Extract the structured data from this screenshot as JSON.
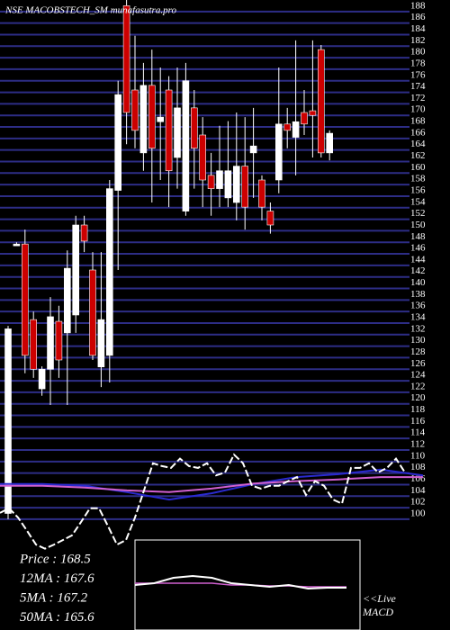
{
  "chart_data": {
    "type": "candlestick",
    "title": "NSE MACOBSTECH_SM munafasutra.pro",
    "ylim": [
      80.8,
      190
    ],
    "yticks": [
      100,
      102,
      104,
      106,
      108,
      110,
      112,
      114,
      116,
      118,
      120,
      122,
      124,
      126,
      128,
      130,
      132,
      134,
      136,
      138,
      140,
      142,
      144,
      146,
      148,
      150,
      152,
      154,
      156,
      158,
      160,
      162,
      164,
      166,
      168,
      170,
      172,
      174,
      176,
      178,
      180,
      182,
      184,
      186,
      188
    ],
    "grid": true,
    "up_color": "#ffffff",
    "down_color": "#cc0000",
    "grid_color": "#2d2d86",
    "open": [
      101,
      147.7,
      147.7,
      134.6,
      122.6,
      126,
      134.3,
      132.3,
      135.4,
      151,
      143.2,
      126.4,
      128.4,
      157,
      189,
      174.4,
      163.5,
      175.2,
      168.9,
      174.4,
      162.7,
      153.4,
      171.3,
      166.6,
      159.6,
      157.3,
      155.7,
      154.9,
      161.2,
      163.5,
      158.8,
      153.4,
      158.8,
      168.5,
      166.2,
      170.5,
      170.8,
      181.4,
      163.5
    ],
    "high": [
      133.5,
      148,
      150.2,
      136,
      126.5,
      138.5,
      137,
      146.6,
      152.6,
      152.6,
      146.3,
      146.3,
      158.8,
      176,
      190,
      183.8,
      179.1,
      181.4,
      178.3,
      176.8,
      178.3,
      179.1,
      174.4,
      169.7,
      163.5,
      168.2,
      169,
      170.5,
      169.7,
      171.3,
      159.6,
      154.9,
      178.3,
      171.3,
      183,
      174.4,
      183,
      182.2,
      167.4
    ],
    "low": [
      100,
      147.4,
      125.3,
      124.5,
      121.4,
      119.8,
      124.5,
      119.8,
      132.3,
      146.3,
      127.6,
      122.9,
      123.7,
      143.2,
      165,
      164.3,
      160.4,
      154.9,
      158.8,
      154.1,
      157.3,
      152.6,
      157.3,
      154.1,
      152.6,
      154.1,
      154.1,
      151.8,
      150.2,
      155.7,
      151.8,
      149.5,
      156.5,
      164.3,
      159.6,
      166.6,
      162.7,
      162.7,
      162.2
    ],
    "close": [
      133,
      147.7,
      128.4,
      126,
      126,
      135.1,
      127.6,
      143.5,
      151,
      148.2,
      128.4,
      134.6,
      157.3,
      173.6,
      170.5,
      167.4,
      175.2,
      164.3,
      169.7,
      160.4,
      171.3,
      176,
      164.3,
      158.8,
      157.3,
      160.4,
      160.4,
      161.2,
      154.1,
      164.7,
      154.1,
      151,
      168.5,
      167.4,
      168.9,
      168.5,
      170,
      163.5,
      166.9
    ],
    "indicator": {
      "color": "#ffffff",
      "values": [
        101.1,
        101.9,
        100.3,
        98.0,
        95.6,
        94.9,
        95.6,
        96.4,
        97.2,
        99.5,
        101.9,
        101.9,
        98.8,
        95.6,
        96.4,
        100.3,
        105.0,
        109.7,
        109.2,
        108.9,
        110.5,
        109.2,
        108.9,
        109.7,
        107.6,
        108.1,
        111.2,
        109.7,
        105.8,
        105.3,
        105.8,
        105.8,
        106.6,
        107.3,
        104.2,
        106.6,
        105.8,
        103.4,
        102.7,
        108.9,
        108.9,
        109.7,
        108.1,
        108.9,
        110.5,
        108.1
      ]
    },
    "series": [
      {
        "color": "#2a2ad0",
        "values": [
          106.1,
          106.1,
          105.8,
          104.7,
          103.4,
          104.5,
          106.1,
          107.3,
          107.8,
          108.6,
          107.6
        ]
      },
      {
        "color": "#d060d0",
        "values": [
          105.8,
          105.8,
          105.5,
          105.0,
          104.7,
          105.3,
          106.2,
          106.6,
          106.9,
          107.3,
          107.3
        ]
      }
    ],
    "stats": [
      "Price   : 168.5",
      "12MA : 167.6",
      "5MA : 167.2",
      "50MA : 165.6"
    ],
    "macd": {
      "label_1": "<<Live",
      "label_2": "MACD",
      "ylim": [
        0,
        100
      ],
      "line": {
        "color": "#ffffff",
        "values": [
          50,
          52,
          58,
          60,
          58,
          52,
          50,
          48,
          50,
          46,
          47,
          47
        ]
      },
      "signal": {
        "color": "#d060d0",
        "values": [
          52,
          52,
          52,
          52,
          52,
          50,
          50,
          49,
          49,
          48,
          48,
          48
        ]
      }
    }
  }
}
